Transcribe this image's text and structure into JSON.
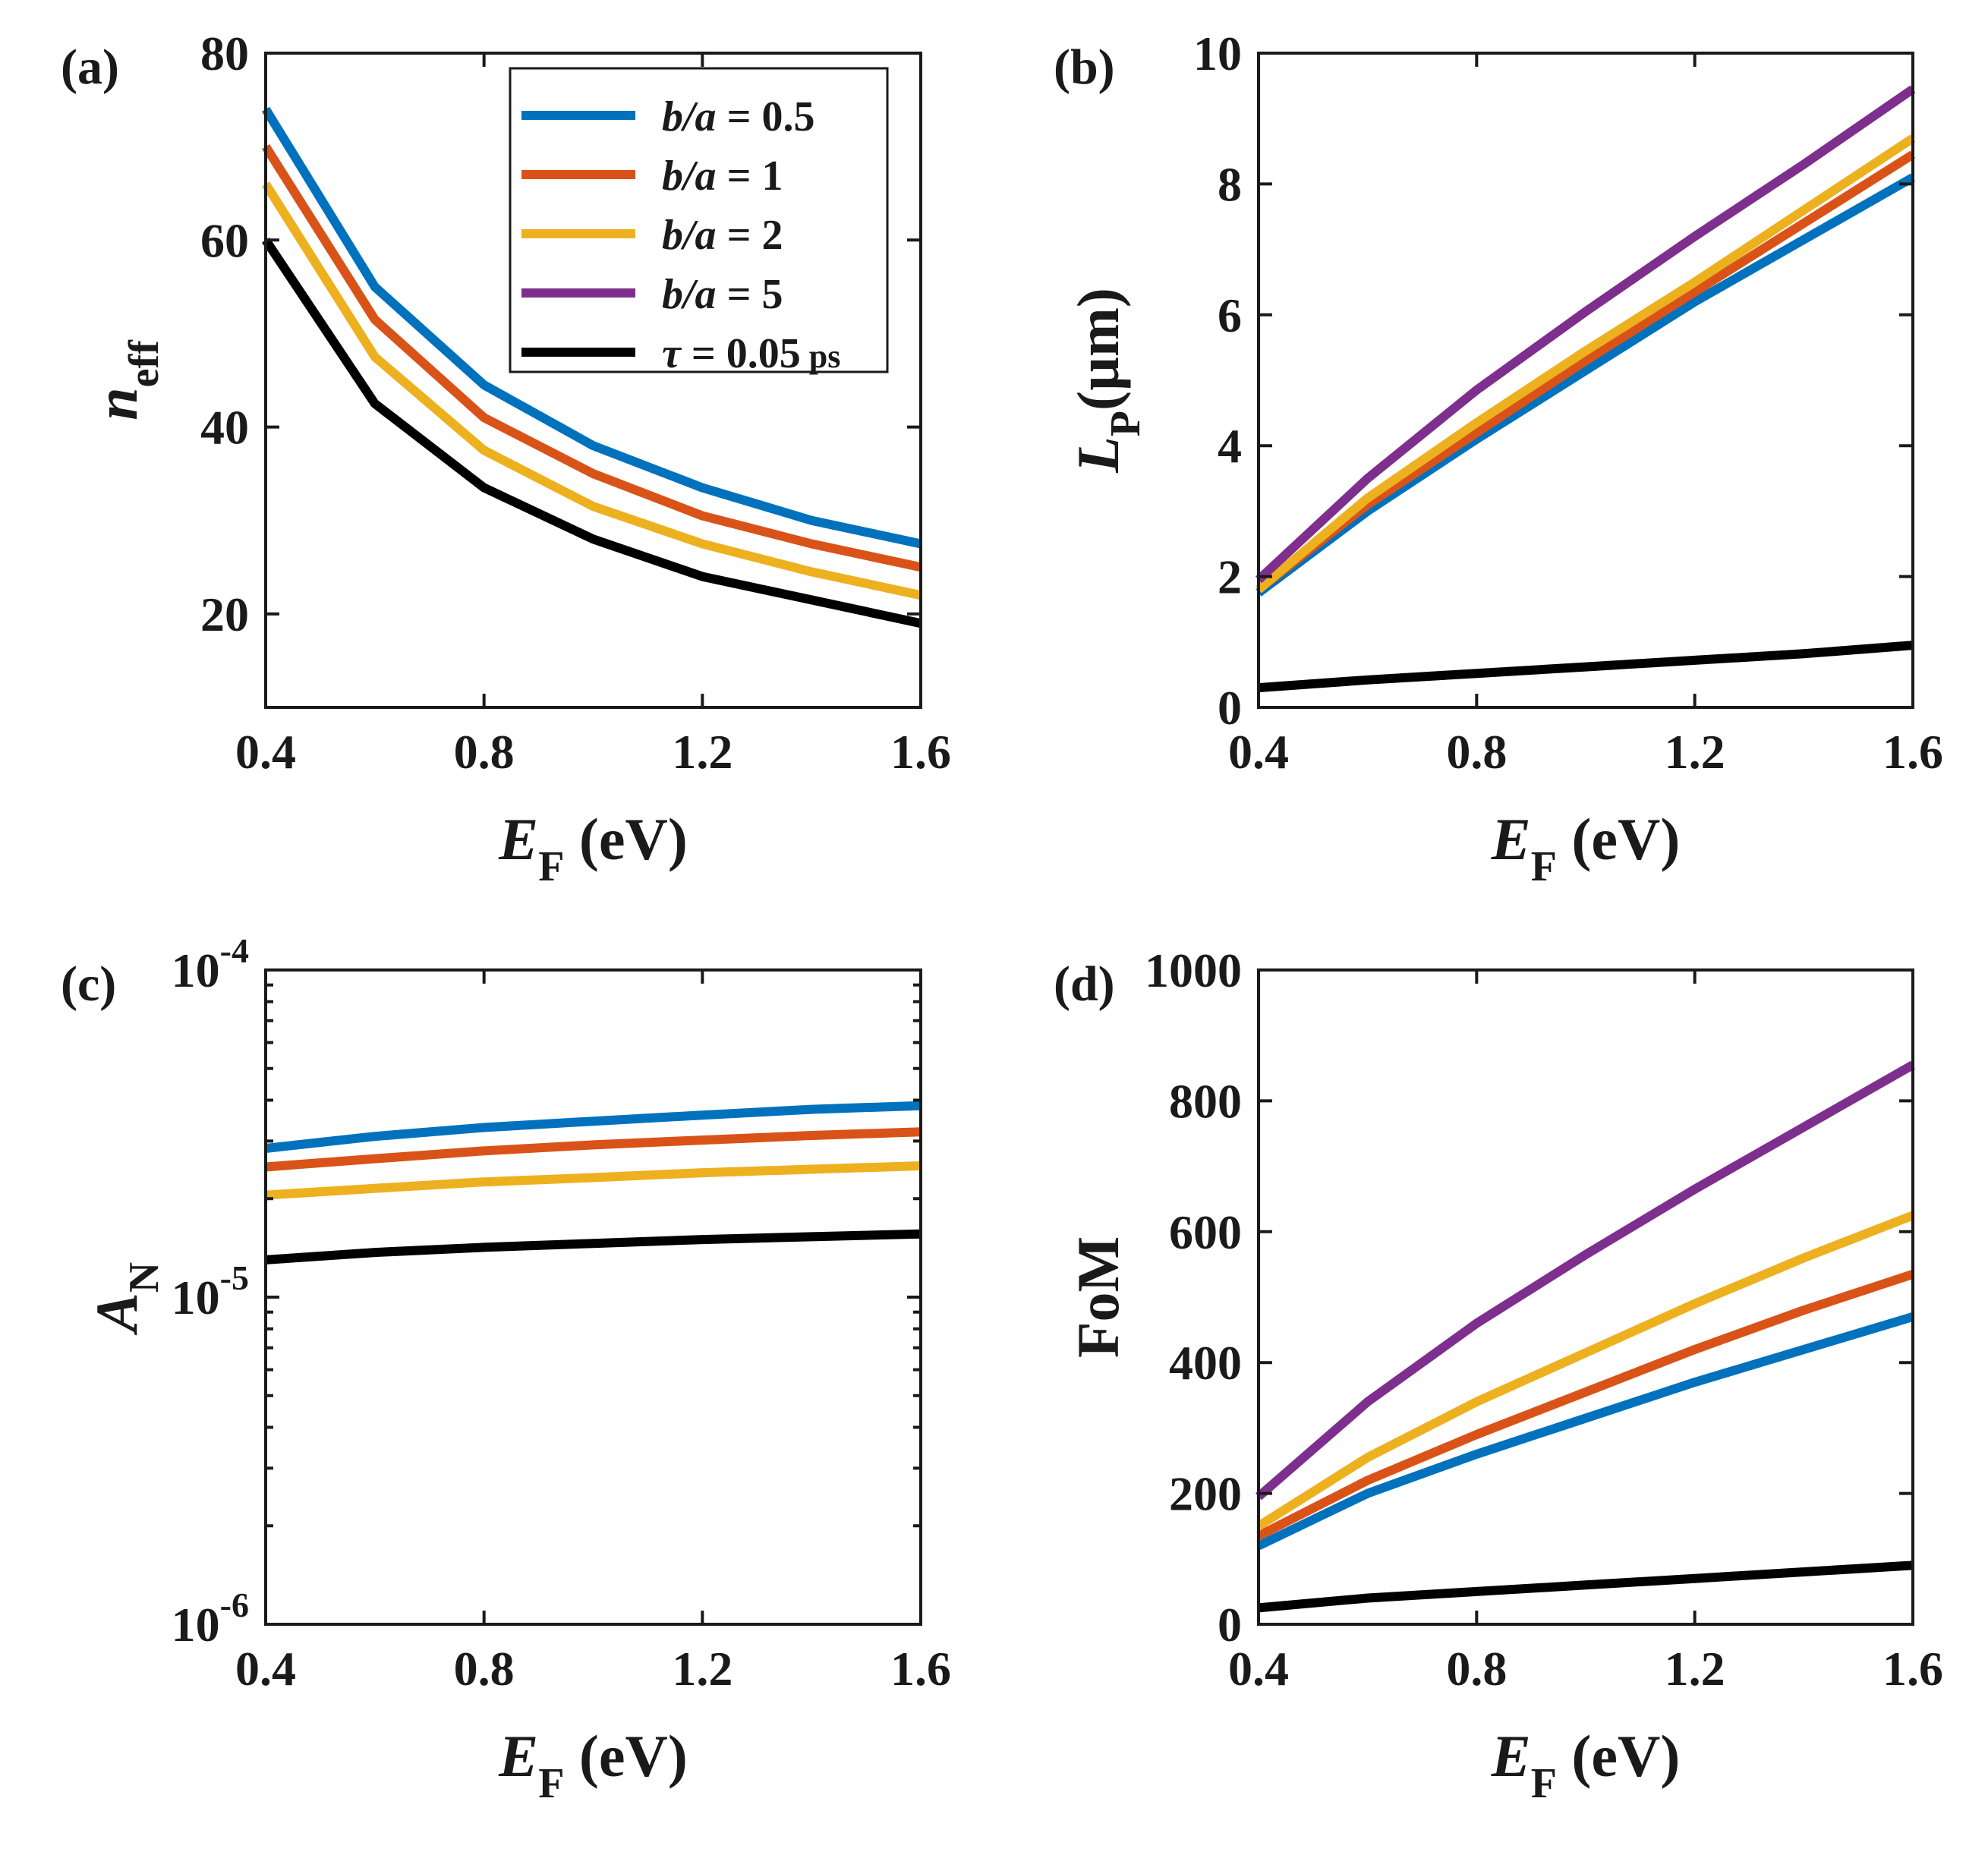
{
  "chart_data": [
    {
      "id": "a",
      "type": "line",
      "panel_label": "(a)",
      "xlabel": {
        "main": "E",
        "sub": "F",
        "unit": " (eV)"
      },
      "ylabel": {
        "main": "n",
        "sub": "eff",
        "unit": ""
      },
      "x": [
        0.4,
        0.6,
        0.8,
        1.0,
        1.2,
        1.4,
        1.6
      ],
      "xlim": [
        0.4,
        1.6
      ],
      "xticks": [
        0.4,
        0.8,
        1.2,
        1.6
      ],
      "xtick_labels": [
        "0.4",
        "0.8",
        "1.2",
        "1.6"
      ],
      "ylim": [
        10,
        80
      ],
      "yscale": "linear",
      "yticks": [
        20,
        40,
        60,
        80
      ],
      "ytick_labels": [
        "20",
        "40",
        "60",
        "80"
      ],
      "legend_position": "top-right",
      "series": [
        {
          "name": "b/a = 0.5",
          "color": "#0072BD",
          "values": [
            74,
            55,
            44.5,
            38,
            33.5,
            30,
            27.5
          ]
        },
        {
          "name": "b/a = 1",
          "color": "#D95319",
          "values": [
            70,
            51.5,
            41,
            35,
            30.5,
            27.5,
            25
          ]
        },
        {
          "name": "b/a = 2",
          "color": "#EDB120",
          "values": [
            66,
            47.5,
            37.5,
            31.5,
            27.5,
            24.5,
            22
          ]
        },
        {
          "name": "b/a = 5",
          "color": "#7E2F8E",
          "values": null
        },
        {
          "name": "τ = 0.05 ps",
          "color": "#000000",
          "values": [
            60,
            42.5,
            33.5,
            28,
            24,
            21.5,
            19
          ]
        }
      ]
    },
    {
      "id": "b",
      "type": "line",
      "panel_label": "(b)",
      "xlabel": {
        "main": "E",
        "sub": "F",
        "unit": " (eV)"
      },
      "ylabel": {
        "main": "L",
        "sub": "P",
        "unit": "(µm)"
      },
      "x": [
        0.4,
        0.6,
        0.8,
        1.0,
        1.2,
        1.4,
        1.6
      ],
      "xlim": [
        0.4,
        1.6
      ],
      "xticks": [
        0.4,
        0.8,
        1.2,
        1.6
      ],
      "xtick_labels": [
        "0.4",
        "0.8",
        "1.2",
        "1.6"
      ],
      "ylim": [
        0,
        10
      ],
      "yscale": "linear",
      "yticks": [
        0,
        2,
        4,
        6,
        8,
        10
      ],
      "ytick_labels": [
        "0",
        "2",
        "4",
        "6",
        "8",
        "10"
      ],
      "series": [
        {
          "name": "b/a = 0.5",
          "color": "#0072BD",
          "values": [
            1.75,
            3.0,
            4.1,
            5.15,
            6.2,
            7.15,
            8.1
          ]
        },
        {
          "name": "b/a = 1",
          "color": "#D95319",
          "values": [
            1.8,
            3.1,
            4.2,
            5.3,
            6.35,
            7.4,
            8.45
          ]
        },
        {
          "name": "b/a = 2",
          "color": "#EDB120",
          "values": [
            1.8,
            3.2,
            4.35,
            5.45,
            6.5,
            7.6,
            8.7
          ]
        },
        {
          "name": "b/a = 5",
          "color": "#7E2F8E",
          "values": [
            1.95,
            3.5,
            4.85,
            6.05,
            7.2,
            8.3,
            9.45
          ]
        },
        {
          "name": "τ = 0.05 ps",
          "color": "#000000",
          "values": [
            0.3,
            0.42,
            0.52,
            0.62,
            0.72,
            0.82,
            0.95
          ]
        }
      ]
    },
    {
      "id": "c",
      "type": "line",
      "panel_label": "(c)",
      "xlabel": {
        "main": "E",
        "sub": "F",
        "unit": " (eV)"
      },
      "ylabel": {
        "main": "A",
        "sub": "N",
        "unit": ""
      },
      "x": [
        0.4,
        0.6,
        0.8,
        1.0,
        1.2,
        1.4,
        1.6
      ],
      "xlim": [
        0.4,
        1.6
      ],
      "xticks": [
        0.4,
        0.8,
        1.2,
        1.6
      ],
      "xtick_labels": [
        "0.4",
        "0.8",
        "1.2",
        "1.6"
      ],
      "ylim": [
        1e-06,
        0.0001
      ],
      "yscale": "log",
      "yticks": [
        1e-06,
        1e-05,
        0.0001
      ],
      "ytick_labels": [
        {
          "base": "10",
          "exp": "-6"
        },
        {
          "base": "10",
          "exp": "-5"
        },
        {
          "base": "10",
          "exp": "-4"
        }
      ],
      "series": [
        {
          "name": "b/a = 0.5",
          "color": "#0072BD",
          "values": [
            2.85e-05,
            3.1e-05,
            3.3e-05,
            3.45e-05,
            3.6e-05,
            3.75e-05,
            3.85e-05
          ]
        },
        {
          "name": "b/a = 1",
          "color": "#D95319",
          "values": [
            2.5e-05,
            2.65e-05,
            2.8e-05,
            2.92e-05,
            3.02e-05,
            3.12e-05,
            3.2e-05
          ]
        },
        {
          "name": "b/a = 2",
          "color": "#EDB120",
          "values": [
            2.05e-05,
            2.15e-05,
            2.25e-05,
            2.32e-05,
            2.4e-05,
            2.46e-05,
            2.52e-05
          ]
        },
        {
          "name": "b/a = 5",
          "color": "#7E2F8E",
          "values": null
        },
        {
          "name": "τ = 0.05 ps",
          "color": "#000000",
          "values": [
            1.3e-05,
            1.37e-05,
            1.42e-05,
            1.46e-05,
            1.5e-05,
            1.53e-05,
            1.56e-05
          ]
        }
      ]
    },
    {
      "id": "d",
      "type": "line",
      "panel_label": "(d)",
      "xlabel": {
        "main": "E",
        "sub": "F",
        "unit": " (eV)"
      },
      "ylabel": {
        "main": "FoM",
        "sub": "",
        "unit": ""
      },
      "x": [
        0.4,
        0.6,
        0.8,
        1.0,
        1.2,
        1.4,
        1.6
      ],
      "xlim": [
        0.4,
        1.6
      ],
      "xticks": [
        0.4,
        0.8,
        1.2,
        1.6
      ],
      "xtick_labels": [
        "0.4",
        "0.8",
        "1.2",
        "1.6"
      ],
      "ylim": [
        0,
        1000
      ],
      "yscale": "linear",
      "yticks": [
        0,
        200,
        400,
        600,
        800,
        1000
      ],
      "ytick_labels": [
        "0",
        "200",
        "400",
        "600",
        "800",
        "1000"
      ],
      "series": [
        {
          "name": "b/a = 0.5",
          "color": "#0072BD",
          "values": [
            120,
            200,
            260,
            315,
            370,
            420,
            470
          ]
        },
        {
          "name": "b/a = 1",
          "color": "#D95319",
          "values": [
            135,
            220,
            290,
            355,
            420,
            480,
            535
          ]
        },
        {
          "name": "b/a = 2",
          "color": "#EDB120",
          "values": [
            150,
            255,
            340,
            415,
            490,
            560,
            625
          ]
        },
        {
          "name": "b/a = 5",
          "color": "#7E2F8E",
          "values": [
            195,
            340,
            460,
            565,
            665,
            760,
            855
          ]
        },
        {
          "name": "τ = 0.05 ps",
          "color": "#000000",
          "values": [
            25,
            40,
            50,
            60,
            70,
            80,
            90
          ]
        }
      ]
    }
  ],
  "legend": {
    "entries": [
      {
        "color": "#0072BD",
        "lhs": "b/a",
        "rhs": "0.5"
      },
      {
        "color": "#D95319",
        "lhs": "b/a",
        "rhs": "1"
      },
      {
        "color": "#EDB120",
        "lhs": "b/a",
        "rhs": "2"
      },
      {
        "color": "#7E2F8E",
        "lhs": "b/a",
        "rhs": "5"
      },
      {
        "color": "#000000",
        "lhs": "τ",
        "rhs": "0.05",
        "unit": "ps"
      }
    ],
    "eq": "="
  }
}
